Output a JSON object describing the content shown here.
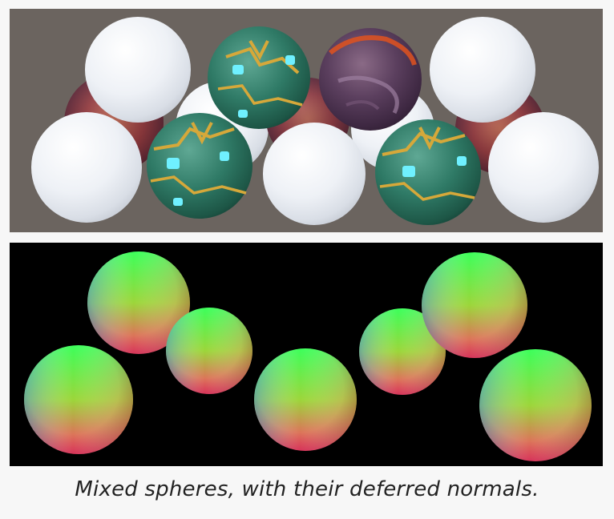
{
  "caption": "Mixed spheres, with their deferred normals.",
  "scene": {
    "background_color": "#6b645f",
    "materials": {
      "white": "white-matte-sphere",
      "circuit": "green-gold-circuit-sphere",
      "lava": "purple-lava-rock-sphere"
    }
  },
  "normals_view": {
    "background_color": "#000000"
  }
}
